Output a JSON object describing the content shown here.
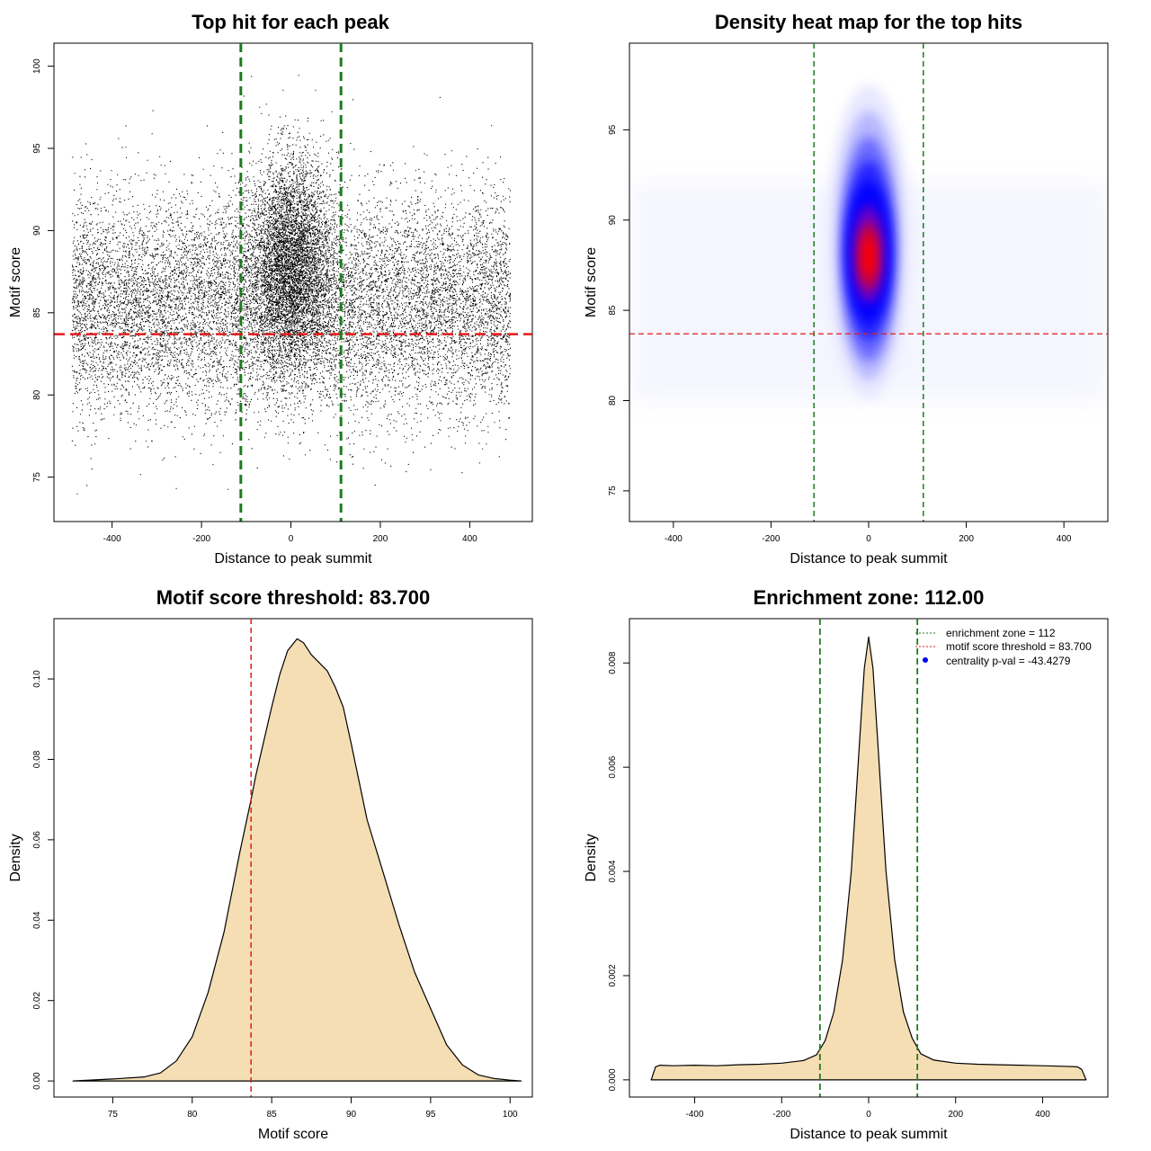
{
  "colors": {
    "green_line": "#1f7a1f",
    "red_line": "#e41a1c",
    "fill_density": "#f5deb3",
    "heat_low": "#ffffff",
    "heat_mid": "#0000ff",
    "heat_high": "#ff0000",
    "points": "#000000"
  },
  "chart_data": [
    {
      "type": "scatter",
      "title": "Top hit for each peak",
      "xlabel": "Distance to peak summit",
      "ylabel": "Motif score",
      "xlim": [
        -530,
        540
      ],
      "ylim": [
        72.3,
        101.4
      ],
      "xticks": [
        -400,
        -200,
        0,
        200,
        400
      ],
      "yticks": [
        75,
        80,
        85,
        90,
        95,
        100
      ],
      "vlines": [
        -112,
        112
      ],
      "hline": 83.7,
      "background_range": [
        -490,
        490
      ],
      "summary": {
        "central_cluster": {
          "x_center": 0,
          "x_sd": 45,
          "y_center": 88,
          "y_sd": 3.2,
          "y_range": [
            79,
            99.6
          ]
        },
        "background": {
          "x_range": [
            -490,
            490
          ],
          "y_center": 85.5,
          "y_sd": 3.3,
          "y_range": [
            73.5,
            98.5
          ]
        }
      }
    },
    {
      "type": "heatmap",
      "title": "Density heat map for the top hits",
      "xlabel": "Distance to peak summit",
      "ylabel": "Motif score",
      "xlim": [
        -490,
        490
      ],
      "ylim": [
        73.3,
        99.8
      ],
      "xticks": [
        -400,
        -200,
        0,
        200,
        400
      ],
      "yticks": [
        75,
        80,
        85,
        90,
        95
      ],
      "vlines": [
        -112,
        112
      ],
      "hline": 83.7,
      "peak": {
        "x": 0,
        "y": 88
      }
    },
    {
      "type": "area",
      "title": "Motif score threshold: 83.700",
      "xlabel": "Motif score",
      "ylabel": "Density",
      "xlim": [
        71.3,
        101.4
      ],
      "ylim": [
        -0.004,
        0.115
      ],
      "xticks": [
        75,
        80,
        85,
        90,
        95,
        100
      ],
      "yticks": [
        0.0,
        0.02,
        0.04,
        0.06,
        0.08,
        0.1
      ],
      "ytick_labels": [
        "0.00",
        "0.02",
        "0.04",
        "0.06",
        "0.08",
        "0.10"
      ],
      "vline": 83.7,
      "x": [
        72.5,
        75,
        77,
        78,
        79,
        80,
        81,
        82,
        83,
        83.7,
        84,
        85,
        85.5,
        86,
        86.6,
        87,
        87.5,
        88,
        88.5,
        89,
        89.5,
        90,
        91,
        92,
        93,
        94,
        95,
        96,
        97,
        98,
        99,
        100,
        100.7
      ],
      "y": [
        0.0,
        0.0005,
        0.001,
        0.002,
        0.005,
        0.011,
        0.022,
        0.037,
        0.057,
        0.07,
        0.076,
        0.093,
        0.101,
        0.107,
        0.11,
        0.109,
        0.106,
        0.104,
        0.102,
        0.098,
        0.093,
        0.084,
        0.065,
        0.052,
        0.039,
        0.027,
        0.018,
        0.009,
        0.004,
        0.0015,
        0.0006,
        0.0002,
        0.0
      ]
    },
    {
      "type": "area",
      "title": "Enrichment zone: 112.00",
      "xlabel": "Distance to peak summit",
      "ylabel": "Density",
      "xlim": [
        -550,
        550
      ],
      "ylim": [
        -0.00033,
        0.00885
      ],
      "xticks": [
        -400,
        -200,
        0,
        200,
        400
      ],
      "yticks": [
        0.0,
        0.002,
        0.004,
        0.006,
        0.008
      ],
      "ytick_labels": [
        "0.000",
        "0.002",
        "0.004",
        "0.006",
        "0.008"
      ],
      "vlines": [
        -112,
        112
      ],
      "x": [
        -500,
        -490,
        -480,
        -450,
        -400,
        -350,
        -300,
        -250,
        -200,
        -150,
        -120,
        -100,
        -80,
        -60,
        -40,
        -20,
        -10,
        0,
        10,
        20,
        40,
        60,
        80,
        100,
        120,
        150,
        200,
        250,
        300,
        350,
        400,
        450,
        480,
        490,
        500
      ],
      "y": [
        0.0,
        0.00025,
        0.00028,
        0.00027,
        0.00028,
        0.00027,
        0.00029,
        0.0003,
        0.00032,
        0.00037,
        0.00048,
        0.00075,
        0.0013,
        0.0023,
        0.004,
        0.0066,
        0.0079,
        0.0085,
        0.0079,
        0.0066,
        0.004,
        0.0023,
        0.0013,
        0.0008,
        0.0005,
        0.00038,
        0.00032,
        0.0003,
        0.00029,
        0.00028,
        0.00027,
        0.00026,
        0.00025,
        0.0002,
        0.0
      ]
    }
  ],
  "legend": {
    "position": "top-right",
    "items": [
      {
        "label": "enrichment zone = 112",
        "symbol": "dotted-line",
        "color": "green"
      },
      {
        "label": "motif score threshold = 83.700",
        "symbol": "dotted-line",
        "color": "red"
      },
      {
        "label": "centrality p-val = -43.4279",
        "symbol": "dot",
        "color": "blue"
      }
    ]
  }
}
